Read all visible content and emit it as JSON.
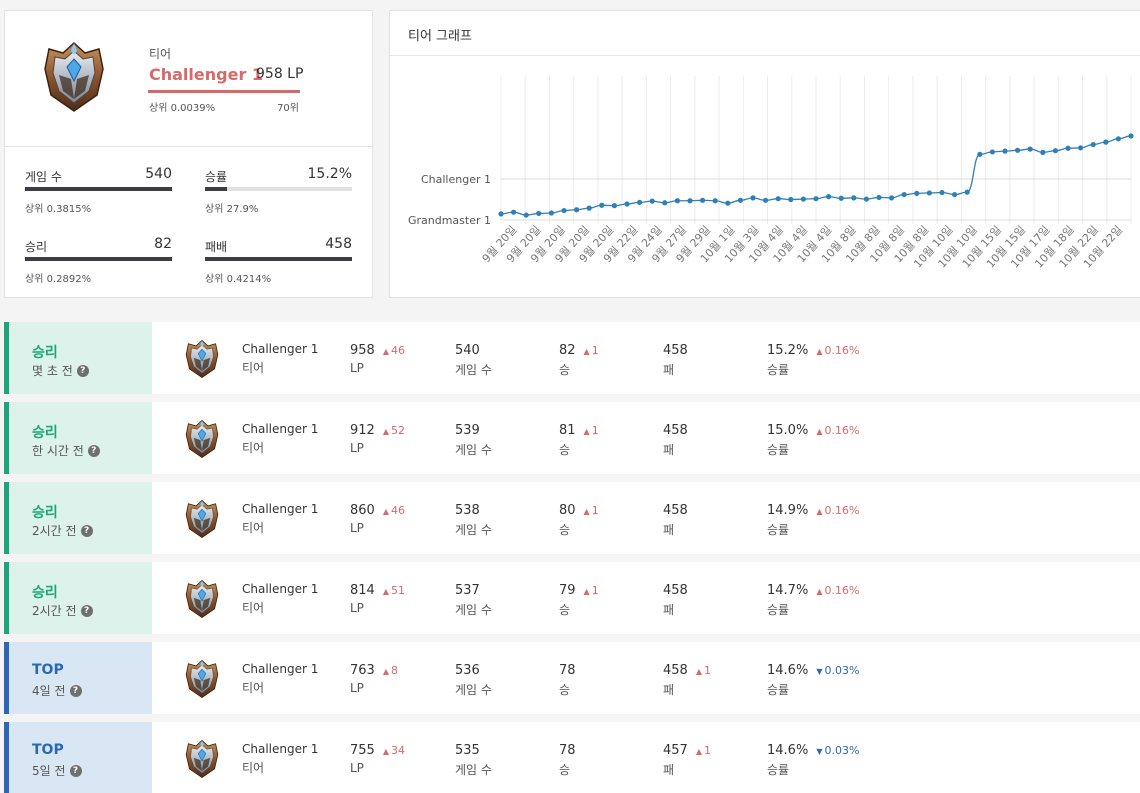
{
  "profile": {
    "tier_caption": "티어",
    "tier_name": "Challenger 1",
    "lp": "958 LP",
    "rank_percent": "상위 0.0039%",
    "rank_position": "70위",
    "stats": [
      {
        "label": "게임 수",
        "value": "540",
        "sub": "상위 0.3815%"
      },
      {
        "label": "승률",
        "value": "15.2%",
        "sub": "상위 27.9%",
        "fill": 0.152
      },
      {
        "label": "승리",
        "value": "82",
        "sub": "상위 0.2892%"
      },
      {
        "label": "패배",
        "value": "458",
        "sub": "상위 0.4214%"
      }
    ]
  },
  "graph": {
    "title": "티어 그래프",
    "y_labels": [
      "Challenger 1",
      "Grandmaster 1"
    ],
    "x_labels": [
      "9월 20일",
      "9월 20일",
      "9월 20일",
      "9월 20일",
      "9월 20일",
      "9월 22일",
      "9월 24일",
      "9월 27일",
      "9월 29일",
      "10월 1일",
      "10월 3일",
      "10월 4일",
      "10월 4일",
      "10월 4일",
      "10월 8일",
      "10월 8일",
      "10월 8일",
      "10월 8일",
      "10월 10일",
      "10월 10일",
      "10월 15일",
      "10월 15일",
      "10월 17일",
      "10월 18일",
      "10월 22일",
      "10월 22일"
    ],
    "points": [
      0.15,
      0.19,
      0.12,
      0.16,
      0.17,
      0.23,
      0.25,
      0.29,
      0.36,
      0.35,
      0.39,
      0.43,
      0.46,
      0.42,
      0.47,
      0.47,
      0.48,
      0.47,
      0.41,
      0.48,
      0.54,
      0.48,
      0.52,
      0.5,
      0.51,
      0.52,
      0.57,
      0.53,
      0.54,
      0.51,
      0.55,
      0.54,
      0.62,
      0.65,
      0.66,
      0.67,
      0.62,
      0.68,
      1.6,
      1.66,
      1.68,
      1.7,
      1.73,
      1.65,
      1.69,
      1.75,
      1.76,
      1.84,
      1.9,
      1.98,
      2.05
    ]
  },
  "history": [
    {
      "kind": "win",
      "result": "승리",
      "time": "몇 초 전",
      "tier": "Challenger 1",
      "tier_label": "티어",
      "lp": "958",
      "lp_delta": "46",
      "lp_dir": "up",
      "lp_label": "LP",
      "games": "540",
      "games_label": "게임 수",
      "wins": "82",
      "wins_delta": "1",
      "wins_dir": "up",
      "wins_label": "승",
      "losses": "458",
      "losses_delta": "",
      "losses_dir": "",
      "losses_label": "패",
      "winrate": "15.2%",
      "wr_delta": "0.16%",
      "wr_dir": "up",
      "wr_label": "승률"
    },
    {
      "kind": "win",
      "result": "승리",
      "time": "한 시간 전",
      "tier": "Challenger 1",
      "tier_label": "티어",
      "lp": "912",
      "lp_delta": "52",
      "lp_dir": "up",
      "lp_label": "LP",
      "games": "539",
      "games_label": "게임 수",
      "wins": "81",
      "wins_delta": "1",
      "wins_dir": "up",
      "wins_label": "승",
      "losses": "458",
      "losses_delta": "",
      "losses_dir": "",
      "losses_label": "패",
      "winrate": "15.0%",
      "wr_delta": "0.16%",
      "wr_dir": "up",
      "wr_label": "승률"
    },
    {
      "kind": "win",
      "result": "승리",
      "time": "2시간 전",
      "tier": "Challenger 1",
      "tier_label": "티어",
      "lp": "860",
      "lp_delta": "46",
      "lp_dir": "up",
      "lp_label": "LP",
      "games": "538",
      "games_label": "게임 수",
      "wins": "80",
      "wins_delta": "1",
      "wins_dir": "up",
      "wins_label": "승",
      "losses": "458",
      "losses_delta": "",
      "losses_dir": "",
      "losses_label": "패",
      "winrate": "14.9%",
      "wr_delta": "0.16%",
      "wr_dir": "up",
      "wr_label": "승률"
    },
    {
      "kind": "win",
      "result": "승리",
      "time": "2시간 전",
      "tier": "Challenger 1",
      "tier_label": "티어",
      "lp": "814",
      "lp_delta": "51",
      "lp_dir": "up",
      "lp_label": "LP",
      "games": "537",
      "games_label": "게임 수",
      "wins": "79",
      "wins_delta": "1",
      "wins_dir": "up",
      "wins_label": "승",
      "losses": "458",
      "losses_delta": "",
      "losses_dir": "",
      "losses_label": "패",
      "winrate": "14.7%",
      "wr_delta": "0.16%",
      "wr_dir": "up",
      "wr_label": "승률"
    },
    {
      "kind": "top",
      "result": "TOP",
      "time": "4일 전",
      "tier": "Challenger 1",
      "tier_label": "티어",
      "lp": "763",
      "lp_delta": "8",
      "lp_dir": "up",
      "lp_label": "LP",
      "games": "536",
      "games_label": "게임 수",
      "wins": "78",
      "wins_delta": "",
      "wins_dir": "",
      "wins_label": "승",
      "losses": "458",
      "losses_delta": "1",
      "losses_dir": "up",
      "losses_label": "패",
      "winrate": "14.6%",
      "wr_delta": "0.03%",
      "wr_dir": "down",
      "wr_label": "승률"
    },
    {
      "kind": "top",
      "result": "TOP",
      "time": "5일 전",
      "tier": "Challenger 1",
      "tier_label": "티어",
      "lp": "755",
      "lp_delta": "34",
      "lp_dir": "up",
      "lp_label": "LP",
      "games": "535",
      "games_label": "게임 수",
      "wins": "78",
      "wins_delta": "",
      "wins_dir": "",
      "wins_label": "승",
      "losses": "457",
      "losses_delta": "1",
      "losses_dir": "up",
      "losses_label": "패",
      "winrate": "14.6%",
      "wr_delta": "0.03%",
      "wr_dir": "down",
      "wr_label": "승률"
    }
  ],
  "icons": {
    "emblem": "challenger-emblem-icon",
    "help": "help-circle-icon",
    "up": "triangle-up-icon",
    "down": "triangle-down-icon"
  },
  "colors": {
    "challenger": "#d66a6a",
    "win": "#1aa67a",
    "top": "#2a68b5",
    "line": "#2f7fb8"
  }
}
